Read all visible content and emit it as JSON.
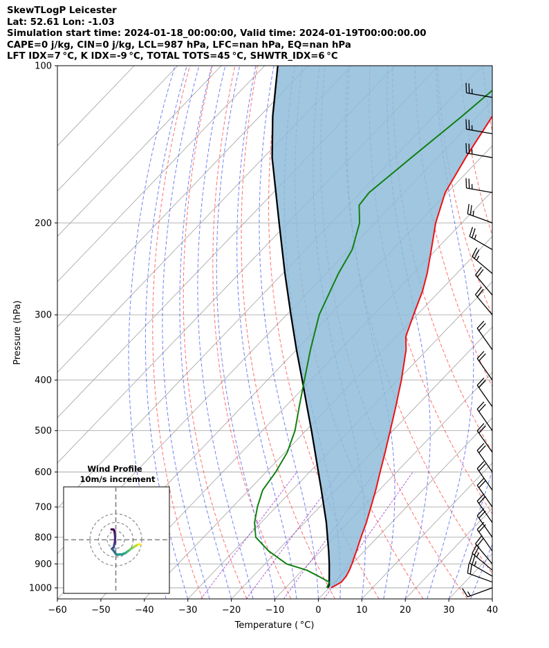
{
  "header": {
    "line1": "SkewTLogP Leicester",
    "line2": "Lat: 52.61   Lon: -1.03",
    "line3": "Simulation start time: 2024-01-18_00:00:00, Valid time: 2024-01-19T00:00:00.00",
    "line4": "CAPE=0 j/kg, CIN=0 j/kg, LCL=987 hPa, LFC=nan hPa, EQ=nan hPa",
    "line5": "LFT IDX=7 °C, K IDX=-9 °C, TOTAL TOTS=45 °C, SHWTR_IDX=6 °C"
  },
  "colors": {
    "temperature": "#ee1111",
    "dewpoint": "#108010",
    "parcel": "#000000",
    "cape_fill": "#8fbcdb",
    "dry_adiabat": "#ff5555",
    "moist_adiabat": "#4455ee",
    "mixing_ratio": "#9933cc",
    "isotherm": "#aaaaaa",
    "hodo_grid": "#808080"
  },
  "chart_data": [
    {
      "type": "line",
      "subtype": "skew-t log-p",
      "xlabel": "Temperature ( °C)",
      "ylabel": "Pressure (hPa)",
      "xlim": [
        -60,
        40
      ],
      "ylim": [
        1050,
        100
      ],
      "y_scale": "log",
      "grid": true,
      "x_ticks": [
        "−60",
        "−50",
        "−40",
        "−30",
        "−20",
        "−10",
        "0",
        "10",
        "20",
        "30",
        "40"
      ],
      "y_ticks": [
        "1000",
        "900",
        "800",
        "700",
        "600",
        "500",
        "400",
        "300",
        "200",
        "100"
      ],
      "series": [
        {
          "key": "temperature",
          "points": [
            [
              1000,
              0.5
            ],
            [
              975,
              1.6
            ],
            [
              950,
              1.4
            ],
            [
              925,
              0.8
            ],
            [
              900,
              0
            ],
            [
              850,
              -1.8
            ],
            [
              800,
              -3.8
            ],
            [
              750,
              -5.8
            ],
            [
              700,
              -8.2
            ],
            [
              650,
              -10.8
            ],
            [
              600,
              -13.8
            ],
            [
              550,
              -17
            ],
            [
              500,
              -20.6
            ],
            [
              450,
              -24.6
            ],
            [
              400,
              -29.2
            ],
            [
              350,
              -34.8
            ],
            [
              330,
              -37.8
            ],
            [
              300,
              -40.8
            ],
            [
              270,
              -44
            ],
            [
              250,
              -46.8
            ],
            [
              230,
              -50.2
            ],
            [
              200,
              -56
            ],
            [
              175,
              -60.5
            ],
            [
              150,
              -63.5
            ],
            [
              125,
              -66.5
            ],
            [
              110,
              -68.3
            ],
            [
              100,
              -69.3
            ]
          ]
        },
        {
          "key": "dewpoint",
          "points": [
            [
              1000,
              -0.5
            ],
            [
              975,
              -1.2
            ],
            [
              950,
              -5
            ],
            [
              925,
              -9
            ],
            [
              900,
              -15
            ],
            [
              850,
              -22
            ],
            [
              800,
              -28
            ],
            [
              750,
              -31.5
            ],
            [
              700,
              -34.3
            ],
            [
              650,
              -36.8
            ],
            [
              600,
              -37.8
            ],
            [
              550,
              -39.5
            ],
            [
              500,
              -42.5
            ],
            [
              450,
              -46.8
            ],
            [
              400,
              -51.5
            ],
            [
              350,
              -56.8
            ],
            [
              300,
              -62.5
            ],
            [
              250,
              -67.2
            ],
            [
              225,
              -69.3
            ],
            [
              200,
              -73.5
            ],
            [
              185,
              -77.5
            ],
            [
              175,
              -78
            ],
            [
              150,
              -76
            ],
            [
              125,
              -73.5
            ],
            [
              100,
              -71
            ]
          ]
        },
        {
          "key": "parcel",
          "points": [
            [
              1000,
              -0.3
            ],
            [
              987,
              -0.6
            ],
            [
              950,
              -2.5
            ],
            [
              900,
              -5.2
            ],
            [
              850,
              -8.2
            ],
            [
              800,
              -11.5
            ],
            [
              750,
              -15
            ],
            [
              700,
              -19
            ],
            [
              650,
              -23.3
            ],
            [
              600,
              -28
            ],
            [
              550,
              -33.1
            ],
            [
              500,
              -38.7
            ],
            [
              450,
              -45
            ],
            [
              400,
              -52
            ],
            [
              350,
              -60
            ],
            [
              300,
              -69
            ],
            [
              250,
              -79.5
            ],
            [
              200,
              -92
            ],
            [
              150,
              -108
            ],
            [
              125,
              -117
            ],
            [
              100,
              -127
            ]
          ]
        }
      ],
      "wind_barbs": [
        {
          "pressure": 1000,
          "speed_kt": 15,
          "dir_deg": 250
        },
        {
          "pressure": 975,
          "speed_kt": 20,
          "dir_deg": 290
        },
        {
          "pressure": 950,
          "speed_kt": 25,
          "dir_deg": 300
        },
        {
          "pressure": 925,
          "speed_kt": 25,
          "dir_deg": 310
        },
        {
          "pressure": 900,
          "speed_kt": 20,
          "dir_deg": 320
        },
        {
          "pressure": 850,
          "speed_kt": 20,
          "dir_deg": 325
        },
        {
          "pressure": 800,
          "speed_kt": 20,
          "dir_deg": 325
        },
        {
          "pressure": 750,
          "speed_kt": 20,
          "dir_deg": 325
        },
        {
          "pressure": 700,
          "speed_kt": 20,
          "dir_deg": 325
        },
        {
          "pressure": 650,
          "speed_kt": 20,
          "dir_deg": 325
        },
        {
          "pressure": 600,
          "speed_kt": 20,
          "dir_deg": 325
        },
        {
          "pressure": 550,
          "speed_kt": 20,
          "dir_deg": 325
        },
        {
          "pressure": 500,
          "speed_kt": 20,
          "dir_deg": 325
        },
        {
          "pressure": 450,
          "speed_kt": 20,
          "dir_deg": 325
        },
        {
          "pressure": 400,
          "speed_kt": 20,
          "dir_deg": 325
        },
        {
          "pressure": 350,
          "speed_kt": 20,
          "dir_deg": 325
        },
        {
          "pressure": 300,
          "speed_kt": 20,
          "dir_deg": 320
        },
        {
          "pressure": 275,
          "speed_kt": 20,
          "dir_deg": 320
        },
        {
          "pressure": 250,
          "speed_kt": 25,
          "dir_deg": 310
        },
        {
          "pressure": 225,
          "speed_kt": 25,
          "dir_deg": 300
        },
        {
          "pressure": 200,
          "speed_kt": 25,
          "dir_deg": 290
        },
        {
          "pressure": 175,
          "speed_kt": 25,
          "dir_deg": 280
        },
        {
          "pressure": 150,
          "speed_kt": 25,
          "dir_deg": 280
        },
        {
          "pressure": 135,
          "speed_kt": 25,
          "dir_deg": 280
        },
        {
          "pressure": 115,
          "speed_kt": 25,
          "dir_deg": 280
        }
      ]
    },
    {
      "type": "line",
      "subtype": "hodograph",
      "title_line1": "Wind Profile",
      "title_line2": "10m/s increment",
      "grid": true,
      "rings_ms": [
        10,
        20,
        30
      ],
      "points": [
        [
          -5,
          12
        ],
        [
          -2.6,
          11.8
        ],
        [
          -1.6,
          10
        ],
        [
          -1.2,
          7
        ],
        [
          -0.8,
          2.5
        ],
        [
          -1,
          -2.5
        ],
        [
          -1.8,
          -5.5
        ],
        [
          -2.4,
          -8.6
        ],
        [
          -4.6,
          -10.5
        ],
        [
          -3.5,
          -11.5
        ],
        [
          -1.5,
          -14
        ],
        [
          -0.2,
          -16.2
        ],
        [
          1.8,
          -17.3
        ],
        [
          4.2,
          -17
        ],
        [
          7.4,
          -16.8
        ],
        [
          9.3,
          -16
        ],
        [
          11.2,
          -15.2
        ],
        [
          13.4,
          -13.6
        ],
        [
          16.4,
          -11.5
        ],
        [
          18.3,
          -9.8
        ],
        [
          20.2,
          -8.8
        ],
        [
          21.3,
          -8.1
        ],
        [
          23.5,
          -6.7
        ],
        [
          26.3,
          -5.3
        ],
        [
          28.5,
          -5.5
        ]
      ]
    }
  ]
}
